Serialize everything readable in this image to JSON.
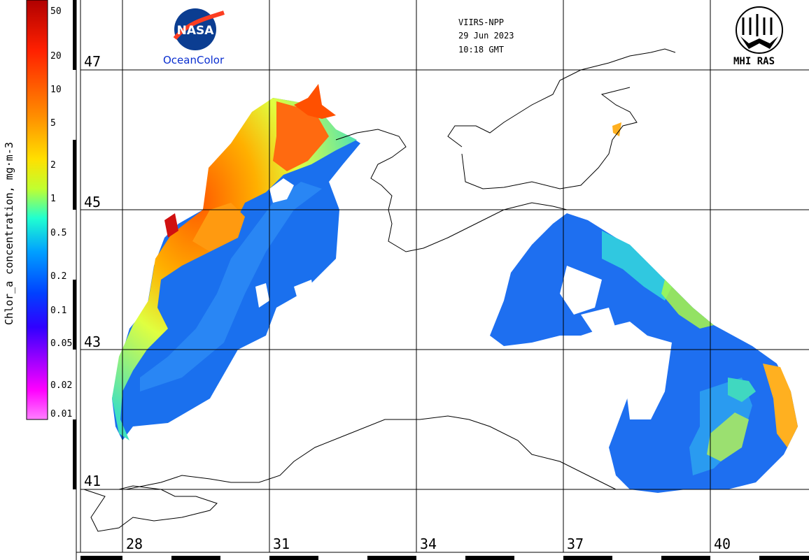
{
  "header": {
    "sensor": "VIIRS-NPP",
    "date": "29 Jun 2023",
    "time": "10:18 GMT"
  },
  "logos": {
    "nasa_text": "NASA",
    "nasa_caption": "OceanColor",
    "mhi_caption": "MHI RAS"
  },
  "colorbar": {
    "title": "Chlor_a concentration, mg·m-3",
    "labels": [
      "50",
      "20",
      "10",
      "5",
      "2",
      "1",
      "0.5",
      "0.2",
      "0.1",
      "0.05",
      "0.02",
      "0.01"
    ],
    "colors": [
      "#c80000",
      "#ff3000",
      "#ff8000",
      "#ffc000",
      "#ffff00",
      "#80ff40",
      "#00ffff",
      "#0080ff",
      "#0000ff",
      "#8000ff",
      "#ff00ff",
      "#ff80ff"
    ]
  },
  "grid": {
    "latitudes": [
      "47",
      "45",
      "43",
      "41"
    ],
    "longitudes": [
      "28",
      "31",
      "34",
      "37",
      "40"
    ]
  }
}
